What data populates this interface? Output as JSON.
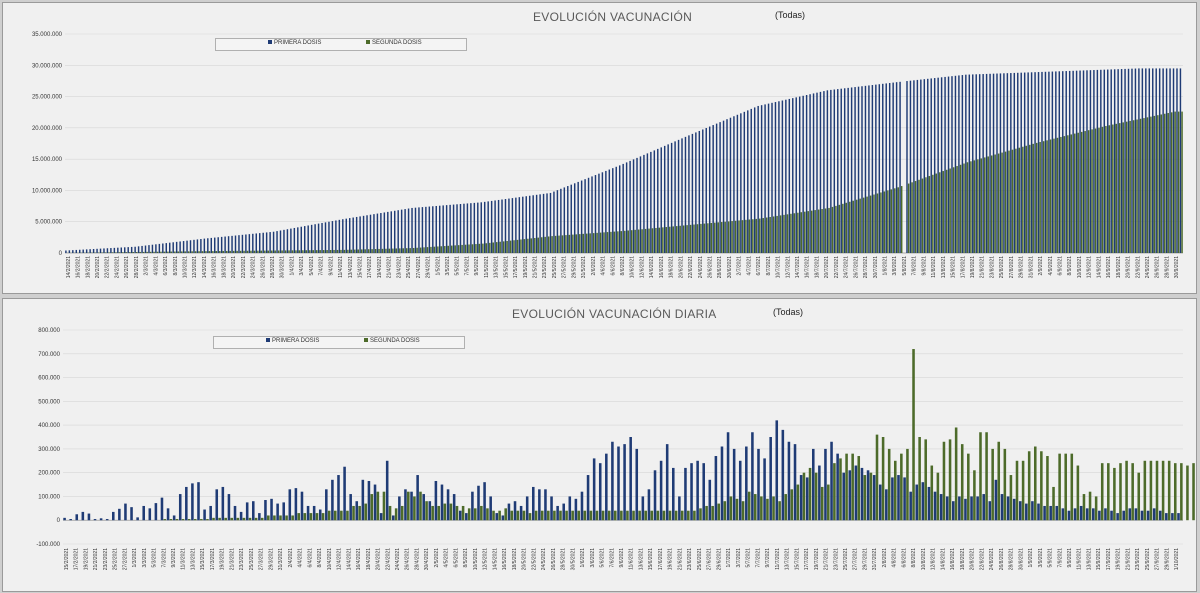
{
  "colors": {
    "primera": "#1f3b75",
    "segunda": "#4d6b2a",
    "grid": "#d6d6d6"
  },
  "chart_data": [
    {
      "type": "bar",
      "title": "EVOLUCIÓN VACUNACIÓN",
      "filter": "(Todas)",
      "series": [
        {
          "name": "PRIMERA DOSIS",
          "anchors": [
            [
              0,
              400000
            ],
            [
              20,
              1000000
            ],
            [
              40,
              2300000
            ],
            [
              60,
              3400000
            ],
            [
              80,
              5400000
            ],
            [
              100,
              7200000
            ],
            [
              120,
              8100000
            ],
            [
              140,
              9600000
            ],
            [
              160,
              14000000
            ],
            [
              180,
              18800000
            ],
            [
              200,
              23500000
            ],
            [
              220,
              26000000
            ],
            [
              240,
              27300000
            ],
            [
              260,
              28500000
            ],
            [
              280,
              28900000
            ],
            [
              290,
              29100000
            ],
            [
              310,
              29500000
            ],
            [
              320,
              29500000
            ]
          ]
        },
        {
          "name": "SEGUNDA DOSIS",
          "anchors": [
            [
              0,
              20000
            ],
            [
              40,
              300000
            ],
            [
              80,
              500000
            ],
            [
              100,
              800000
            ],
            [
              120,
              1500000
            ],
            [
              140,
              2700000
            ],
            [
              160,
              3500000
            ],
            [
              180,
              4500000
            ],
            [
              200,
              5500000
            ],
            [
              220,
              7200000
            ],
            [
              240,
              10500000
            ],
            [
              260,
              14500000
            ],
            [
              280,
              17600000
            ],
            [
              300,
              20300000
            ],
            [
              320,
              22600000
            ]
          ]
        }
      ],
      "gap_indexes": [
        242
      ],
      "ylim": [
        0,
        35000000
      ],
      "yticks": [
        "35.000.000",
        "30.000.000",
        "25.000.000",
        "20.000.000",
        "15.000.000",
        "10.000.000",
        "5.000.000",
        "0"
      ],
      "xticks": [
        "14/2/2021",
        "16/2/2021",
        "18/2/2021",
        "20/2/2021",
        "22/2/2021",
        "24/2/2021",
        "26/2/2021",
        "28/2/2021",
        "2/3/2021",
        "4/3/2021",
        "6/3/2021",
        "8/3/2021",
        "10/3/2021",
        "12/3/2021",
        "14/3/2021",
        "16/3/2021",
        "18/3/2021",
        "20/3/2021",
        "22/3/2021",
        "24/3/2021",
        "26/3/2021",
        "28/3/2021",
        "30/3/2021",
        "1/4/2021",
        "3/4/2021",
        "5/4/2021",
        "7/4/2021",
        "9/4/2021",
        "11/4/2021",
        "13/4/2021",
        "15/4/2021",
        "17/4/2021",
        "19/4/2021",
        "21/4/2021",
        "23/4/2021",
        "25/4/2021",
        "27/4/2021",
        "29/4/2021",
        "1/5/2021",
        "3/5/2021",
        "5/5/2021",
        "7/5/2021",
        "9/5/2021",
        "11/5/2021",
        "13/5/2021",
        "15/5/2021",
        "17/5/2021",
        "19/5/2021",
        "21/5/2021",
        "23/5/2021",
        "25/5/2021",
        "27/5/2021",
        "29/5/2021",
        "31/5/2021",
        "2/6/2021",
        "4/6/2021",
        "6/6/2021",
        "8/6/2021",
        "10/6/2021",
        "12/6/2021",
        "14/6/2021",
        "16/6/2021",
        "18/6/2021",
        "20/6/2021",
        "22/6/2021",
        "24/6/2021",
        "26/6/2021",
        "28/6/2021",
        "30/6/2021",
        "2/7/2021",
        "4/7/2021",
        "6/7/2021",
        "8/7/2021",
        "10/7/2021",
        "12/7/2021",
        "14/7/2021",
        "16/7/2021",
        "18/7/2021",
        "20/7/2021",
        "22/7/2021",
        "24/7/2021",
        "26/7/2021",
        "28/7/2021",
        "30/7/2021",
        "1/8/2021",
        "3/8/2021",
        "5/8/2021",
        "7/8/2021",
        "9/8/2021",
        "11/8/2021",
        "13/8/2021",
        "15/8/2021",
        "17/8/2021",
        "19/8/2021",
        "21/8/2021",
        "23/8/2021",
        "25/8/2021",
        "27/8/2021",
        "29/8/2021",
        "31/8/2021",
        "2/9/2021",
        "4/9/2021",
        "6/9/2021",
        "8/9/2021",
        "10/9/2021",
        "12/9/2021",
        "14/9/2021",
        "16/9/2021",
        "18/9/2021",
        "20/9/2021",
        "22/9/2021",
        "24/9/2021",
        "26/9/2021",
        "28/9/2021",
        "30/9/2021"
      ]
    },
    {
      "type": "bar",
      "title": "EVOLUCIÓN VACUNACIÓN DIARIA",
      "filter": "(Todas)",
      "series": [
        {
          "name": "PRIMERA DOSIS",
          "values": [
            10000,
            5000,
            25000,
            35000,
            28000,
            5000,
            8000,
            5000,
            35000,
            48000,
            70000,
            55000,
            12000,
            60000,
            50000,
            72000,
            95000,
            50000,
            20000,
            110000,
            140000,
            155000,
            160000,
            45000,
            60000,
            130000,
            140000,
            110000,
            60000,
            35000,
            75000,
            80000,
            30000,
            85000,
            90000,
            70000,
            75000,
            130000,
            135000,
            120000,
            60000,
            60000,
            45000,
            130000,
            170000,
            190000,
            225000,
            110000,
            80000,
            170000,
            165000,
            150000,
            30000,
            250000,
            20000,
            100000,
            130000,
            120000,
            190000,
            110000,
            80000,
            165000,
            150000,
            130000,
            110000,
            40000,
            30000,
            120000,
            145000,
            160000,
            100000,
            30000,
            20000,
            70000,
            80000,
            60000,
            100000,
            140000,
            130000,
            130000,
            100000,
            60000,
            70000,
            100000,
            90000,
            120000,
            190000,
            260000,
            240000,
            280000,
            330000,
            310000,
            320000,
            350000,
            300000,
            100000,
            130000,
            210000,
            250000,
            320000,
            220000,
            100000,
            220000,
            240000,
            250000,
            240000,
            170000,
            270000,
            310000,
            370000,
            300000,
            250000,
            310000,
            370000,
            300000,
            260000,
            350000,
            420000,
            380000,
            330000,
            320000,
            190000,
            180000,
            300000,
            230000,
            300000,
            330000,
            280000,
            200000,
            210000,
            230000,
            220000,
            210000,
            190000,
            150000,
            130000,
            180000,
            190000,
            180000,
            120000,
            150000,
            160000,
            140000,
            120000,
            110000,
            100000,
            80000,
            100000,
            90000,
            100000,
            100000,
            110000,
            80000,
            170000,
            110000,
            100000,
            90000,
            80000,
            70000,
            80000,
            70000,
            60000,
            60000,
            60000,
            50000,
            40000,
            50000,
            60000,
            50000,
            50000,
            40000,
            50000,
            40000,
            30000,
            40000,
            50000,
            50000,
            40000,
            40000,
            50000,
            40000,
            30000,
            30000,
            30000
          ]
        },
        {
          "name": "SEGUNDA DOSIS",
          "values": [
            0,
            0,
            0,
            0,
            0,
            0,
            0,
            0,
            0,
            0,
            0,
            0,
            0,
            0,
            0,
            0,
            5000,
            5000,
            5000,
            5000,
            5000,
            5000,
            5000,
            5000,
            10000,
            10000,
            10000,
            10000,
            10000,
            10000,
            10000,
            10000,
            10000,
            20000,
            20000,
            20000,
            20000,
            20000,
            30000,
            30000,
            30000,
            30000,
            30000,
            40000,
            40000,
            40000,
            40000,
            60000,
            60000,
            70000,
            110000,
            120000,
            120000,
            60000,
            50000,
            60000,
            120000,
            100000,
            120000,
            80000,
            60000,
            60000,
            70000,
            70000,
            60000,
            60000,
            50000,
            50000,
            60000,
            50000,
            40000,
            40000,
            50000,
            40000,
            40000,
            40000,
            30000,
            40000,
            40000,
            40000,
            40000,
            40000,
            40000,
            40000,
            40000,
            40000,
            40000,
            40000,
            40000,
            40000,
            40000,
            40000,
            40000,
            40000,
            40000,
            40000,
            40000,
            40000,
            40000,
            40000,
            40000,
            40000,
            40000,
            40000,
            50000,
            60000,
            60000,
            70000,
            80000,
            100000,
            90000,
            80000,
            120000,
            110000,
            100000,
            90000,
            100000,
            80000,
            110000,
            130000,
            150000,
            200000,
            220000,
            200000,
            140000,
            150000,
            240000,
            260000,
            280000,
            280000,
            270000,
            190000,
            200000,
            360000,
            350000,
            300000,
            250000,
            280000,
            300000,
            720000,
            350000,
            340000,
            230000,
            200000,
            330000,
            340000,
            390000,
            320000,
            280000,
            210000,
            370000,
            370000,
            300000,
            330000,
            300000,
            190000,
            250000,
            250000,
            290000,
            310000,
            290000,
            270000,
            140000,
            280000,
            280000,
            280000,
            230000,
            110000,
            120000,
            100000,
            240000,
            240000,
            220000,
            240000,
            250000,
            240000,
            200000,
            250000,
            250000,
            250000,
            250000,
            250000,
            240000,
            240000,
            230000,
            240000,
            250000
          ]
        }
      ],
      "ylim": [
        -100000,
        800000
      ],
      "yticks": [
        "800.000",
        "700.000",
        "600.000",
        "500.000",
        "400.000",
        "300.000",
        "200.000",
        "100.000",
        "0",
        "-100.000"
      ],
      "xticks": [
        "15/2/2021",
        "17/2/2021",
        "19/2/2021",
        "21/2/2021",
        "23/2/2021",
        "25/2/2021",
        "27/2/2021",
        "1/3/2021",
        "3/3/2021",
        "5/3/2021",
        "7/3/2021",
        "9/3/2021",
        "11/3/2021",
        "13/3/2021",
        "15/3/2021",
        "17/3/2021",
        "19/3/2021",
        "21/3/2021",
        "23/3/2021",
        "25/3/2021",
        "27/3/2021",
        "29/3/2021",
        "31/3/2021",
        "2/4/2021",
        "4/4/2021",
        "6/4/2021",
        "8/4/2021",
        "10/4/2021",
        "12/4/2021",
        "14/4/2021",
        "16/4/2021",
        "18/4/2021",
        "20/4/2021",
        "22/4/2021",
        "24/4/2021",
        "26/4/2021",
        "28/4/2021",
        "30/4/2021",
        "2/5/2021",
        "4/5/2021",
        "6/5/2021",
        "8/5/2021",
        "10/5/2021",
        "12/5/2021",
        "14/5/2021",
        "16/5/2021",
        "18/5/2021",
        "20/5/2021",
        "22/5/2021",
        "24/5/2021",
        "26/5/2021",
        "28/5/2021",
        "30/5/2021",
        "1/6/2021",
        "3/6/2021",
        "5/6/2021",
        "7/6/2021",
        "9/6/2021",
        "11/6/2021",
        "13/6/2021",
        "15/6/2021",
        "17/6/2021",
        "19/6/2021",
        "21/6/2021",
        "23/6/2021",
        "25/6/2021",
        "27/6/2021",
        "29/6/2021",
        "1/7/2021",
        "3/7/2021",
        "5/7/2021",
        "7/7/2021",
        "9/7/2021",
        "11/7/2021",
        "13/7/2021",
        "15/7/2021",
        "17/7/2021",
        "19/7/2021",
        "21/7/2021",
        "23/7/2021",
        "25/7/2021",
        "27/7/2021",
        "29/7/2021",
        "31/7/2021",
        "2/8/2021",
        "4/8/2021",
        "6/8/2021",
        "8/8/2021",
        "10/8/2021",
        "12/8/2021",
        "14/8/2021",
        "16/8/2021",
        "18/8/2021",
        "20/8/2021",
        "22/8/2021",
        "24/8/2021",
        "26/8/2021",
        "28/8/2021",
        "30/8/2021",
        "1/9/2021",
        "3/9/2021",
        "5/9/2021",
        "7/9/2021",
        "9/9/2021",
        "11/9/2021",
        "13/9/2021",
        "15/9/2021",
        "17/9/2021",
        "19/9/2021",
        "21/9/2021",
        "23/9/2021",
        "25/9/2021",
        "27/9/2021",
        "29/9/2021",
        "1/10/2021"
      ]
    }
  ]
}
